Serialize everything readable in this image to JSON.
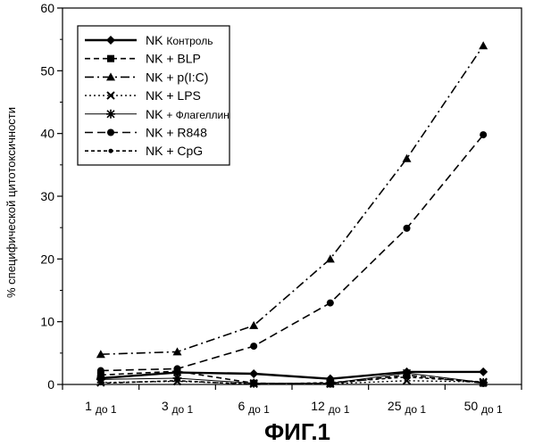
{
  "chart_data": {
    "type": "line",
    "title": "",
    "xlabel": "",
    "ylabel": "% специфической цитотоксичности",
    "ylim": [
      0,
      60
    ],
    "yticks": [
      0,
      10,
      20,
      30,
      40,
      50,
      60
    ],
    "categories": [
      {
        "main": "1",
        "sub": "до 1"
      },
      {
        "main": "3",
        "sub": "до 1"
      },
      {
        "main": "6",
        "sub": "до 1"
      },
      {
        "main": "12",
        "sub": "до 1"
      },
      {
        "main": "25",
        "sub": "до 1"
      },
      {
        "main": "50",
        "sub": "до 1"
      }
    ],
    "legend_position": "top-left",
    "series": [
      {
        "name_prefix": "NK",
        "name_suffix": "Контроль",
        "marker": "diamond",
        "dash": "none",
        "width": 2.4,
        "color": "#000000",
        "values": [
          1.0,
          1.9,
          1.7,
          0.9,
          2.0,
          2.0
        ]
      },
      {
        "name_prefix": "NK",
        "name_suffix": "+ BLP",
        "marker": "square",
        "dash": "6,4",
        "width": 1.6,
        "color": "#000000",
        "values": [
          1.5,
          2.1,
          0.2,
          0.1,
          1.5,
          0.2
        ]
      },
      {
        "name_prefix": "NK",
        "name_suffix": "+ p(I:C)",
        "marker": "triangle",
        "dash": "10,4,2,4",
        "width": 1.6,
        "color": "#000000",
        "values": [
          4.8,
          5.2,
          9.4,
          20.0,
          36.0,
          54.0
        ]
      },
      {
        "name_prefix": "NK",
        "name_suffix": "+ LPS",
        "marker": "x",
        "dash": "2,3",
        "width": 1.4,
        "color": "#000000",
        "values": [
          0.3,
          0.5,
          0.1,
          0.1,
          0.6,
          0.4
        ]
      },
      {
        "name_prefix": "NK",
        "name_suffix": "+ Флагеллин",
        "marker": "star",
        "dash": "none",
        "width": 1.0,
        "color": "#000000",
        "values": [
          0.8,
          1.0,
          0.2,
          0.2,
          1.8,
          0.3
        ]
      },
      {
        "name_prefix": "NK",
        "name_suffix": "+ R848",
        "marker": "circle",
        "dash": "9,5",
        "width": 1.6,
        "color": "#000000",
        "values": [
          2.2,
          2.5,
          6.1,
          13.0,
          24.9,
          39.8
        ]
      },
      {
        "name_prefix": "NK",
        "name_suffix": "+ CpG",
        "marker": "smalldot",
        "dash": "4,3",
        "width": 1.6,
        "color": "#000000",
        "values": [
          0.2,
          0.6,
          0.0,
          0.3,
          1.2,
          0.4
        ]
      }
    ]
  },
  "caption": "ФИГ.1"
}
